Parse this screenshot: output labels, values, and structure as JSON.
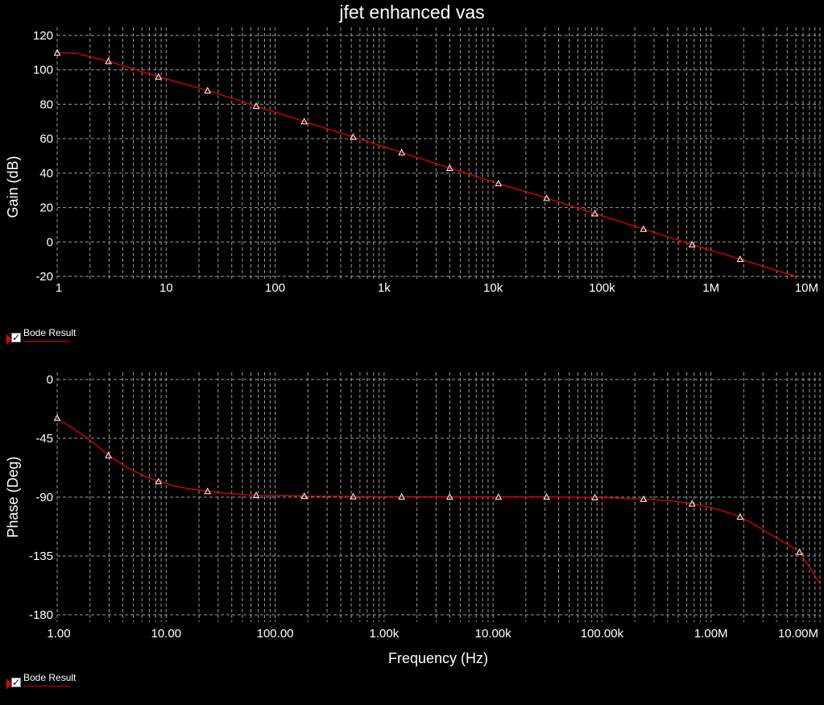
{
  "title": "jfet enhanced vas",
  "legend": {
    "top": {
      "label": "Bode Result",
      "checked": true
    },
    "bottom": {
      "label": "Bode Result",
      "checked": true
    }
  },
  "colors": {
    "background": "#000000",
    "trace": "#e00000",
    "grid": "#9a9a9a",
    "text": "#ffffff"
  },
  "chart_data": [
    {
      "type": "line",
      "name": "gain",
      "ylabel": "Gain (dB)",
      "xscale": "log",
      "xlim": [
        1,
        10000000
      ],
      "ylim": [
        -20,
        120
      ],
      "yticks": [
        -20,
        0,
        20,
        40,
        60,
        80,
        100,
        120
      ],
      "xtick_labels": [
        "1",
        "10",
        "100",
        "1k",
        "10k",
        "100k",
        "1M",
        "10M"
      ],
      "grid": true,
      "series": [
        {
          "name": "Bode Result",
          "color": "#e00000",
          "x": [
            1,
            1.5,
            2.95,
            8.5,
            24,
            67,
            185,
            520,
            1450,
            4000,
            11200,
            31000,
            86000,
            240000,
            670000,
            1850000,
            6000000
          ],
          "y": [
            110,
            109.5,
            105,
            96,
            88,
            79,
            70,
            61,
            52,
            43,
            34,
            25.5,
            16.5,
            7.5,
            -1.5,
            -10,
            -20
          ],
          "markers_x": [
            1,
            2.95,
            8.5,
            24,
            67,
            185,
            520,
            1450,
            4000,
            11200,
            31000,
            86000,
            240000,
            670000,
            1850000
          ],
          "markers_y": [
            110,
            105,
            96,
            88,
            79,
            70,
            61,
            52,
            43,
            34,
            25.5,
            16.5,
            7.5,
            -1.5,
            -10
          ]
        }
      ]
    },
    {
      "type": "line",
      "name": "phase",
      "ylabel": "Phase (Deg)",
      "xlabel": "Frequency (Hz)",
      "xscale": "log",
      "xlim": [
        1,
        10000000
      ],
      "ylim": [
        -180,
        0
      ],
      "yticks": [
        -180,
        -135,
        -90,
        -45,
        0
      ],
      "xtick_labels": [
        "1.00",
        "10.00",
        "100.00",
        "1.00k",
        "10.00k",
        "100.00k",
        "1.00M",
        "10.00M"
      ],
      "grid": true,
      "series": [
        {
          "name": "Bode Result",
          "color": "#e00000",
          "x": [
            1,
            1.4,
            2.05,
            2.95,
            4.3,
            6,
            8.5,
            12,
            16,
            24,
            40,
            67,
            185,
            520,
            1450,
            4000,
            11200,
            31000,
            86000,
            240000,
            450000,
            670000,
            1000000,
            1400000,
            1850000,
            2500000,
            3500000,
            5000000,
            6500000,
            9000000,
            10500000
          ],
          "y": [
            -29.5,
            -37.5,
            -47,
            -58,
            -67,
            -73,
            -78,
            -81.5,
            -83.5,
            -85.5,
            -87.5,
            -88.5,
            -89.2,
            -89.5,
            -89.7,
            -89.8,
            -89.8,
            -89.8,
            -90.2,
            -91.5,
            -93,
            -95,
            -98,
            -101.5,
            -105,
            -111,
            -118.5,
            -126,
            -132,
            -150,
            -159
          ],
          "markers_x": [
            1,
            2.95,
            8.5,
            24,
            67,
            185,
            520,
            1450,
            4000,
            11200,
            31000,
            86000,
            240000,
            670000,
            1850000,
            6500000
          ],
          "markers_y": [
            -29.5,
            -58,
            -78,
            -85.5,
            -88.5,
            -89.2,
            -89.5,
            -89.7,
            -89.8,
            -89.8,
            -89.8,
            -90.2,
            -91.5,
            -95,
            -105,
            -132
          ]
        }
      ]
    }
  ]
}
